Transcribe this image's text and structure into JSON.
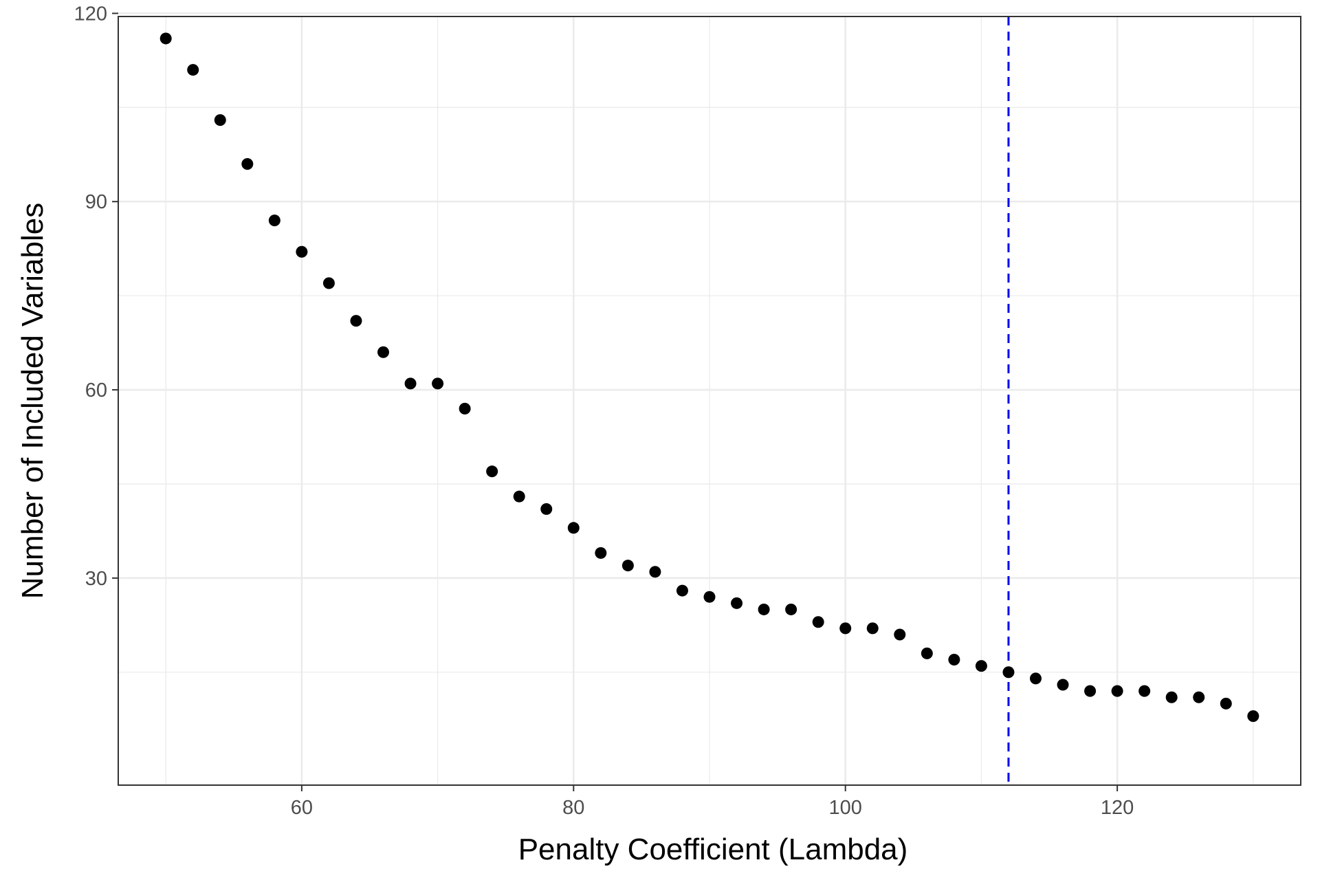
{
  "chart_data": {
    "type": "scatter",
    "title": "",
    "xlabel": "Penalty Coefficient (Lambda)",
    "ylabel": "Number of Included Variables",
    "xlim": [
      46.5,
      133.5
    ],
    "ylim": [
      -3,
      119.5
    ],
    "x_ticks": [
      60,
      80,
      100,
      120
    ],
    "x_tick_labels": [
      "60",
      "80",
      "100",
      "120"
    ],
    "y_ticks": [
      30,
      60,
      90,
      120
    ],
    "y_tick_labels": [
      "30",
      "60",
      "90",
      "120"
    ],
    "x_minor_ticks": [
      50,
      70,
      90,
      110,
      130
    ],
    "y_minor_ticks": [
      15,
      45,
      75,
      105
    ],
    "grid": true,
    "legend": "none",
    "point_color": "#000000",
    "series": [
      {
        "x": [
          50,
          52,
          54,
          56,
          58,
          60,
          62,
          64,
          66,
          68,
          70,
          72,
          74,
          76,
          78,
          80,
          82,
          84,
          86,
          88,
          90,
          92,
          94,
          96,
          98,
          100,
          102,
          104,
          106,
          108,
          110,
          112,
          114,
          116,
          118,
          120,
          122,
          124,
          126,
          128,
          130
        ],
        "y": [
          116,
          111,
          103,
          96,
          87,
          82,
          77,
          71,
          66,
          61,
          61,
          57,
          47,
          43,
          41,
          38,
          34,
          32,
          31,
          28,
          27,
          26,
          25,
          25,
          23,
          22,
          22,
          21,
          18,
          17,
          16,
          15,
          14,
          13,
          12,
          12,
          12,
          11,
          11,
          10,
          8
        ]
      }
    ],
    "reference_line": {
      "orientation": "vertical",
      "x": 112,
      "color": "#0000ee",
      "style": "dashed"
    }
  }
}
